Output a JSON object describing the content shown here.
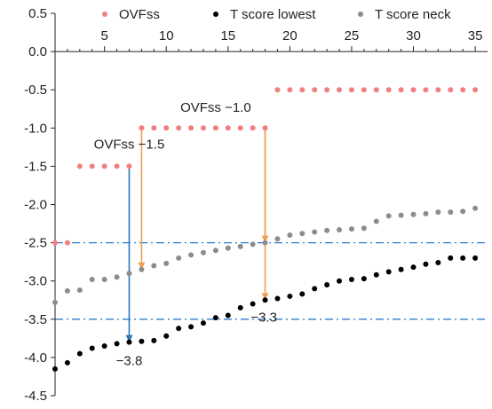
{
  "chart_data": {
    "type": "scatter",
    "title": "",
    "xlabel": "",
    "ylabel": "",
    "x_ticks": [
      5,
      10,
      15,
      20,
      25,
      30,
      35
    ],
    "y_ticks": [
      0.5,
      0.0,
      -0.5,
      -1.0,
      -1.5,
      -2.0,
      -2.5,
      -3.0,
      -3.5,
      -4.0,
      -4.5
    ],
    "y_tick_labels": [
      "0.5",
      "0.0",
      "-0.5",
      "-1.0",
      "-1.5",
      "-2.0",
      "-2.5",
      "-3.0",
      "-3.5",
      "-4.0",
      "-4.5"
    ],
    "xlim": [
      1,
      36
    ],
    "ylim": [
      -4.5,
      0.5
    ],
    "x_axis_at_y": 0,
    "legend_position": "top",
    "series": [
      {
        "name": "OVFss",
        "color": "#f08080",
        "points": [
          [
            1,
            -2.5
          ],
          [
            2,
            -2.5
          ],
          [
            3,
            -1.5
          ],
          [
            4,
            -1.5
          ],
          [
            5,
            -1.5
          ],
          [
            6,
            -1.5
          ],
          [
            7,
            -1.5
          ],
          [
            8,
            -1.0
          ],
          [
            9,
            -1.0
          ],
          [
            10,
            -1.0
          ],
          [
            11,
            -1.0
          ],
          [
            12,
            -1.0
          ],
          [
            13,
            -1.0
          ],
          [
            14,
            -1.0
          ],
          [
            15,
            -1.0
          ],
          [
            16,
            -1.0
          ],
          [
            17,
            -1.0
          ],
          [
            18,
            -1.0
          ],
          [
            19,
            -0.5
          ],
          [
            20,
            -0.5
          ],
          [
            21,
            -0.5
          ],
          [
            22,
            -0.5
          ],
          [
            23,
            -0.5
          ],
          [
            24,
            -0.5
          ],
          [
            25,
            -0.5
          ],
          [
            26,
            -0.5
          ],
          [
            27,
            -0.5
          ],
          [
            28,
            -0.5
          ],
          [
            29,
            -0.5
          ],
          [
            30,
            -0.5
          ],
          [
            31,
            -0.5
          ],
          [
            32,
            -0.5
          ],
          [
            33,
            -0.5
          ],
          [
            34,
            -0.5
          ],
          [
            35,
            -0.5
          ]
        ]
      },
      {
        "name": "T score lowest",
        "color": "#000000",
        "points": [
          [
            1,
            -4.15
          ],
          [
            2,
            -4.07
          ],
          [
            3,
            -3.95
          ],
          [
            4,
            -3.88
          ],
          [
            5,
            -3.85
          ],
          [
            6,
            -3.82
          ],
          [
            7,
            -3.8
          ],
          [
            8,
            -3.79
          ],
          [
            9,
            -3.78
          ],
          [
            10,
            -3.72
          ],
          [
            11,
            -3.62
          ],
          [
            12,
            -3.6
          ],
          [
            13,
            -3.55
          ],
          [
            14,
            -3.48
          ],
          [
            15,
            -3.45
          ],
          [
            16,
            -3.35
          ],
          [
            17,
            -3.3
          ],
          [
            18,
            -3.25
          ],
          [
            19,
            -3.23
          ],
          [
            20,
            -3.2
          ],
          [
            21,
            -3.17
          ],
          [
            22,
            -3.1
          ],
          [
            23,
            -3.05
          ],
          [
            24,
            -3.0
          ],
          [
            25,
            -2.98
          ],
          [
            26,
            -2.97
          ],
          [
            27,
            -2.92
          ],
          [
            28,
            -2.88
          ],
          [
            29,
            -2.85
          ],
          [
            30,
            -2.82
          ],
          [
            31,
            -2.78
          ],
          [
            32,
            -2.76
          ],
          [
            33,
            -2.7
          ],
          [
            34,
            -2.7
          ],
          [
            35,
            -2.7
          ]
        ]
      },
      {
        "name": "T score neck",
        "color": "#8c8c8c",
        "points": [
          [
            1,
            -3.28
          ],
          [
            2,
            -3.13
          ],
          [
            3,
            -3.12
          ],
          [
            4,
            -2.98
          ],
          [
            5,
            -2.98
          ],
          [
            6,
            -2.95
          ],
          [
            7,
            -2.9
          ],
          [
            8,
            -2.85
          ],
          [
            9,
            -2.8
          ],
          [
            10,
            -2.77
          ],
          [
            11,
            -2.7
          ],
          [
            12,
            -2.66
          ],
          [
            13,
            -2.63
          ],
          [
            14,
            -2.6
          ],
          [
            15,
            -2.57
          ],
          [
            16,
            -2.55
          ],
          [
            17,
            -2.52
          ],
          [
            18,
            -2.5
          ],
          [
            19,
            -2.45
          ],
          [
            20,
            -2.4
          ],
          [
            21,
            -2.38
          ],
          [
            22,
            -2.36
          ],
          [
            23,
            -2.34
          ],
          [
            24,
            -2.33
          ],
          [
            25,
            -2.32
          ],
          [
            26,
            -2.31
          ],
          [
            27,
            -2.22
          ],
          [
            28,
            -2.15
          ],
          [
            29,
            -2.14
          ],
          [
            30,
            -2.13
          ],
          [
            31,
            -2.12
          ],
          [
            32,
            -2.1
          ],
          [
            33,
            -2.1
          ],
          [
            34,
            -2.09
          ],
          [
            35,
            -2.05
          ]
        ]
      }
    ],
    "reference_lines": [
      {
        "y": -2.5,
        "style": "dash-dot",
        "color": "#2e7bd1"
      },
      {
        "y": -3.5,
        "style": "dash-dot",
        "color": "#2e7bd1"
      }
    ],
    "arrows": [
      {
        "x": 7,
        "y_from": -1.5,
        "y_to": -3.8,
        "color": "#2e75b6"
      },
      {
        "x": 8,
        "y_from": -1.0,
        "y_to": -2.85,
        "color": "#f0a050"
      },
      {
        "x": 18,
        "y_from": -1.0,
        "y_to": -2.5,
        "color": "#f0a050"
      },
      {
        "x": 18,
        "y_from": -1.0,
        "y_to": -3.25,
        "color": "#f0a050"
      }
    ],
    "annotations": [
      {
        "text": "OVFss −1.5",
        "x": 7,
        "y": -1.27
      },
      {
        "text": "OVFss −1.0",
        "x": 14,
        "y": -0.79
      },
      {
        "text": "−3.8",
        "x": 7,
        "y": -4.1
      },
      {
        "text": "−3.3",
        "x": 17.9,
        "y": -3.53
      }
    ]
  }
}
